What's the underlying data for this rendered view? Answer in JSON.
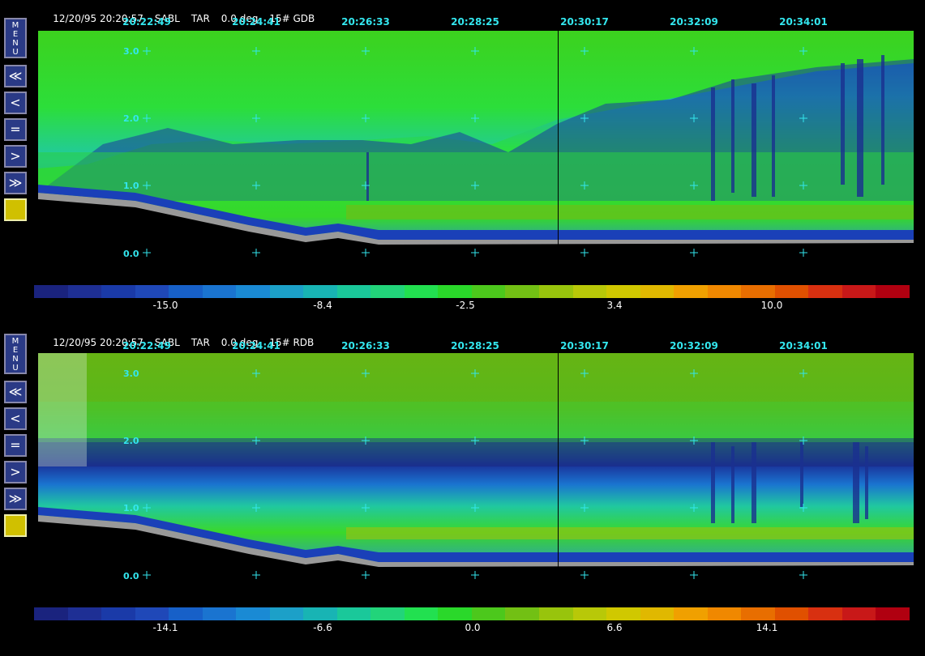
{
  "panels": [
    {
      "header": {
        "date_time": "12/20/95 20:20:57",
        "site": "SABL",
        "mode": "TAR",
        "angle": "0.0 deg",
        "product": "15# GDB"
      },
      "time_ticks": [
        "20:22:49",
        "20:24:41",
        "20:26:33",
        "20:28:25",
        "20:30:17",
        "20:32:09",
        "20:34:01"
      ],
      "y_ticks": [
        "3.0",
        "2.0",
        "1.0",
        "0.0"
      ],
      "colorbar_labels": [
        "-15.0",
        "-8.4",
        "-2.5",
        "3.4",
        "10.0"
      ]
    },
    {
      "header": {
        "date_time": "12/20/95 20:20:57",
        "site": "SABL",
        "mode": "TAR",
        "angle": "0.0 deg",
        "product": "15# RDB"
      },
      "time_ticks": [
        "20:22:49",
        "20:24:41",
        "20:26:33",
        "20:28:25",
        "20:30:17",
        "20:32:09",
        "20:34:01"
      ],
      "y_ticks": [
        "3.0",
        "2.0",
        "1.0",
        "0.0"
      ],
      "colorbar_labels": [
        "-14.1",
        "-6.6",
        "0.0",
        "6.6",
        "14.1"
      ]
    }
  ],
  "sidebar": {
    "menu_label": "M E N U",
    "fast_back_label": "≪",
    "back_label": "<",
    "equal_label": "=",
    "forward_label": ">",
    "fast_forward_label": "≫"
  },
  "colorbar_colors": [
    "#1a237e",
    "#1e2f94",
    "#1a3aa8",
    "#1f48b8",
    "#1760c8",
    "#1a74d0",
    "#1a8ad4",
    "#1ca0c8",
    "#18b4b4",
    "#1ac89a",
    "#22d47a",
    "#22e050",
    "#2ad82a",
    "#4cc81c",
    "#72c014",
    "#98c40c",
    "#b8c808",
    "#d0c800",
    "#e0b800",
    "#f0a000",
    "#f08800",
    "#e86e00",
    "#e05000",
    "#d83010",
    "#c81818",
    "#b00010"
  ]
}
